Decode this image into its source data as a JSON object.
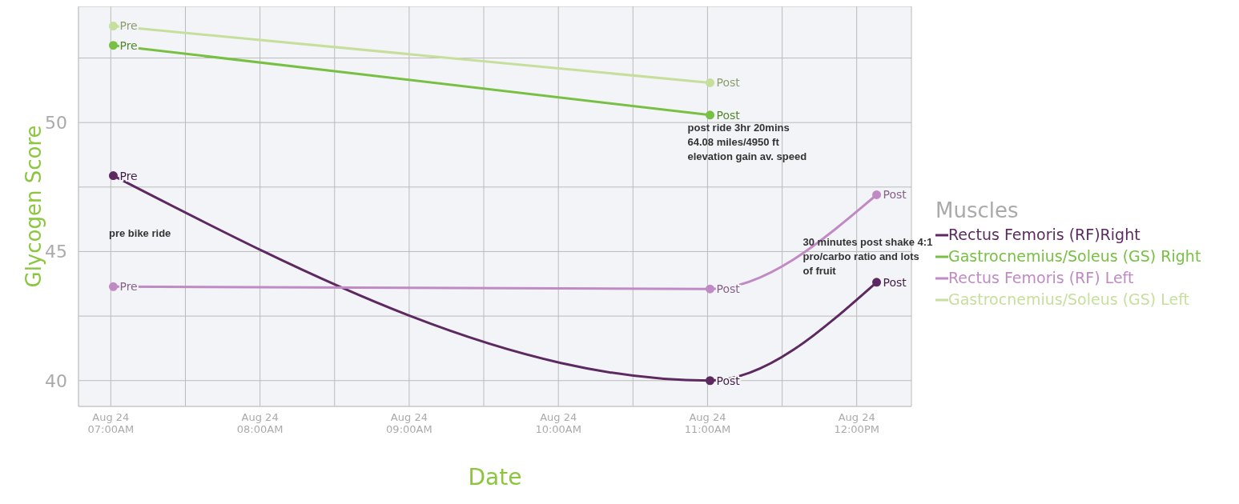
{
  "chart_data": {
    "type": "line",
    "xlabel": "Date",
    "ylabel": "Glycogen Score",
    "legend_title": "Muscles",
    "legend": "right",
    "grid": true,
    "marker": "circle",
    "line_style": "solid",
    "xlim": [
      "--08-24T06:47",
      "--08-24T12:22"
    ],
    "ylim": [
      39,
      54.5
    ],
    "xticks": [
      {
        "value": "--08-24T07:00",
        "label": "Aug 24\n07:00AM"
      },
      {
        "value": "--08-24T07:30",
        "label": null
      },
      {
        "value": "--08-24T08:00",
        "label": "Aug 24\n08:00AM"
      },
      {
        "value": "--08-24T08:30",
        "label": null
      },
      {
        "value": "--08-24T09:00",
        "label": "Aug 24\n09:00AM"
      },
      {
        "value": "--08-24T09:30",
        "label": null
      },
      {
        "value": "--08-24T10:00",
        "label": "Aug 24\n10:00AM"
      },
      {
        "value": "--08-24T10:30",
        "label": null
      },
      {
        "value": "--08-24T11:00",
        "label": "Aug 24\n11:00AM"
      },
      {
        "value": "--08-24T11:30",
        "label": null
      },
      {
        "value": "--08-24T12:00",
        "label": "Aug 24\n12:00PM"
      }
    ],
    "yticks": [
      40,
      {
        "value": 42.5,
        "label": null
      },
      45,
      {
        "value": 47.5,
        "label": null
      },
      50,
      {
        "value": 52.5,
        "label": null
      }
    ],
    "series": [
      {
        "name": "Rectus Femoris (RF)Right",
        "color": "#5c2a60",
        "x": [
          "--08-24T07:01",
          "--08-24T11:01",
          "--08-24T12:08"
        ],
        "values": [
          47.94,
          40.0,
          43.81
        ],
        "value_labels": [
          "Pre",
          "Post",
          "Post"
        ]
      },
      {
        "name": "Gastrocnemius/Soleus (GS) Right",
        "color": "#78c043",
        "x": [
          "--08-24T07:01",
          "--08-24T11:01"
        ],
        "values": [
          52.99,
          50.29
        ],
        "value_labels": [
          "Pre",
          "Post"
        ]
      },
      {
        "name": "Rectus Femoris (RF) Left",
        "color": "#c08ac4",
        "x": [
          "--08-24T07:01",
          "--08-24T11:01",
          "--08-24T12:08"
        ],
        "values": [
          43.64,
          43.55,
          47.2
        ],
        "value_labels": [
          "Pre",
          "Post",
          "Post"
        ]
      },
      {
        "name": "Gastrocnemius/Soleus (GS) Left",
        "color": "#c6df9c",
        "x": [
          "--08-24T07:01",
          "--08-24T11:01"
        ],
        "values": [
          53.74,
          51.54
        ],
        "value_labels": [
          "Pre",
          "Post"
        ]
      }
    ],
    "annotations": [
      "pre bike ride",
      {
        "text": "post ride 3hr 20mins\n64.08 miles/4950 ft\nelevation gain av. speed",
        "x": "--08-24T11:01",
        "y": 50.29
      },
      {
        "text": "30 minutes post shake 4:1\npro/carbo ratio and lots\nof fruit",
        "x": "--08-24T12:08",
        "y": 43.81
      }
    ]
  }
}
